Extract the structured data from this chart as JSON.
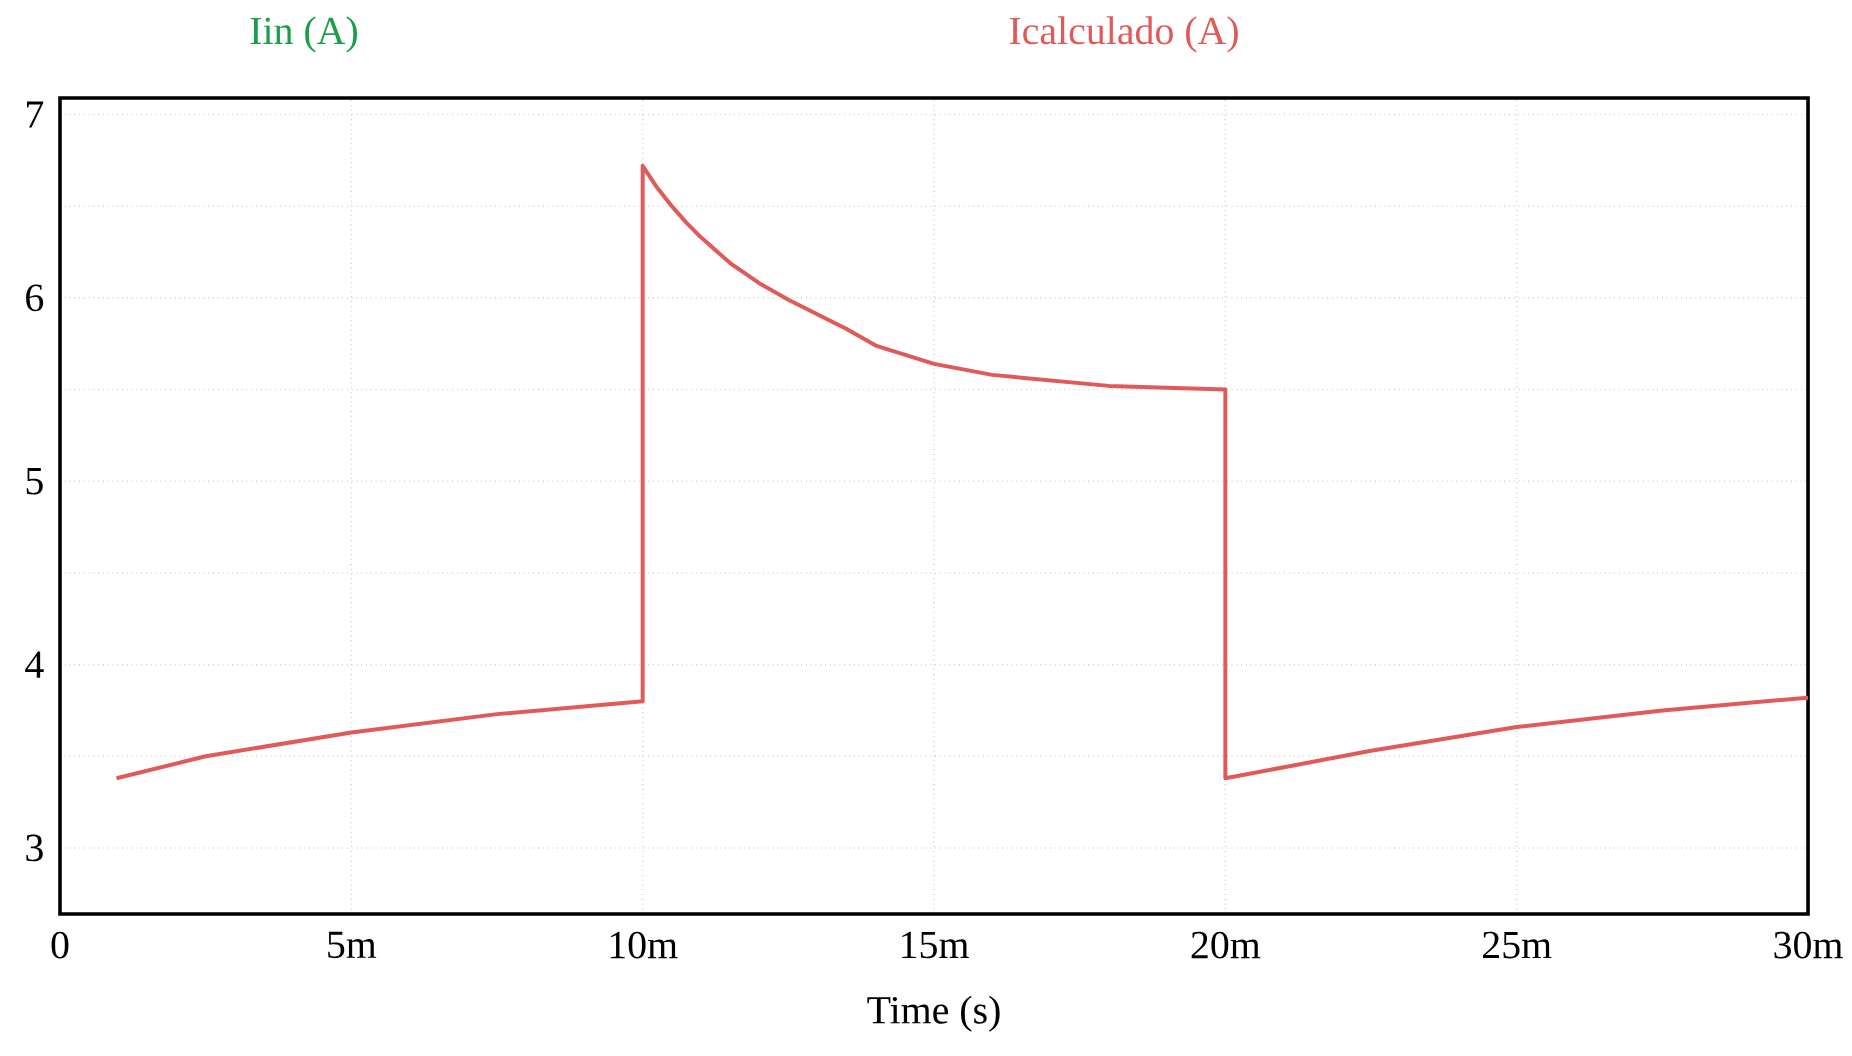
{
  "chart_data": {
    "type": "line",
    "xlabel": "Time (s)",
    "legend": "top",
    "grid": true,
    "x": [
      0.97,
      2.5,
      5,
      7.5,
      10,
      10,
      10.25,
      10.5,
      10.75,
      11,
      11.5,
      12,
      12.5,
      13,
      13.5,
      14,
      15,
      16,
      17,
      18,
      19,
      20,
      20,
      22.5,
      25,
      27.5,
      30
    ],
    "series": [
      {
        "name": "Iin (A)",
        "color": "#1a9e4a",
        "values": [
          null,
          null,
          null,
          null,
          null,
          null,
          null,
          null,
          null,
          null,
          null,
          null,
          null,
          null,
          null,
          null,
          null,
          null,
          null,
          null,
          null,
          null,
          null,
          null,
          null,
          null,
          null
        ]
      },
      {
        "name": "Icalculado (A)",
        "color": "#e05a5a",
        "values": [
          3.38,
          3.5,
          3.63,
          3.73,
          3.8,
          6.72,
          6.6,
          6.5,
          6.41,
          6.33,
          6.19,
          6.08,
          5.99,
          5.91,
          5.83,
          5.74,
          5.64,
          5.58,
          5.55,
          5.52,
          5.51,
          5.5,
          3.38,
          3.53,
          3.66,
          3.75,
          3.82
        ]
      }
    ],
    "xlim": [
      0,
      30
    ],
    "ylim": [
      2.64,
      7.09
    ],
    "xticks": [
      0,
      {
        "value": 5,
        "label": "5m"
      },
      {
        "value": 10,
        "label": "10m"
      },
      {
        "value": 15,
        "label": "15m"
      },
      {
        "value": 20,
        "label": "20m"
      },
      {
        "value": 25,
        "label": "25m"
      },
      {
        "value": 30,
        "label": "30m"
      }
    ],
    "yticks": [
      3,
      {
        "value": 3.5,
        "label": null
      },
      4,
      {
        "value": 4.5,
        "label": null
      },
      5,
      {
        "value": 5.5,
        "label": null
      },
      6,
      {
        "value": 6.5,
        "label": null
      },
      7
    ]
  }
}
